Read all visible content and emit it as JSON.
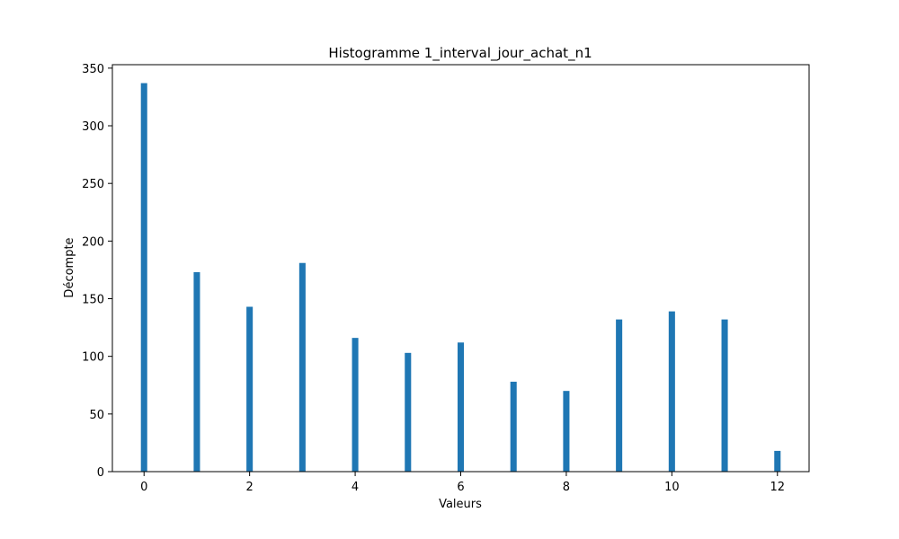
{
  "chart_data": {
    "type": "bar",
    "title": "Histogramme 1_interval_jour_achat_n1",
    "xlabel": "Valeurs",
    "ylabel": "Décompte",
    "x": [
      0,
      1,
      2,
      3,
      4,
      5,
      6,
      7,
      8,
      9,
      10,
      11,
      12
    ],
    "values": [
      337,
      173,
      143,
      181,
      116,
      103,
      112,
      78,
      70,
      132,
      139,
      132,
      18
    ],
    "bar_width": 0.12,
    "xlim": [
      -0.6,
      12.6
    ],
    "ylim": [
      0,
      353
    ],
    "xticks": [
      0,
      2,
      4,
      6,
      8,
      10,
      12
    ],
    "yticks": [
      0,
      50,
      100,
      150,
      200,
      250,
      300,
      350
    ],
    "grid": false,
    "bar_color": "#1f77b4"
  }
}
